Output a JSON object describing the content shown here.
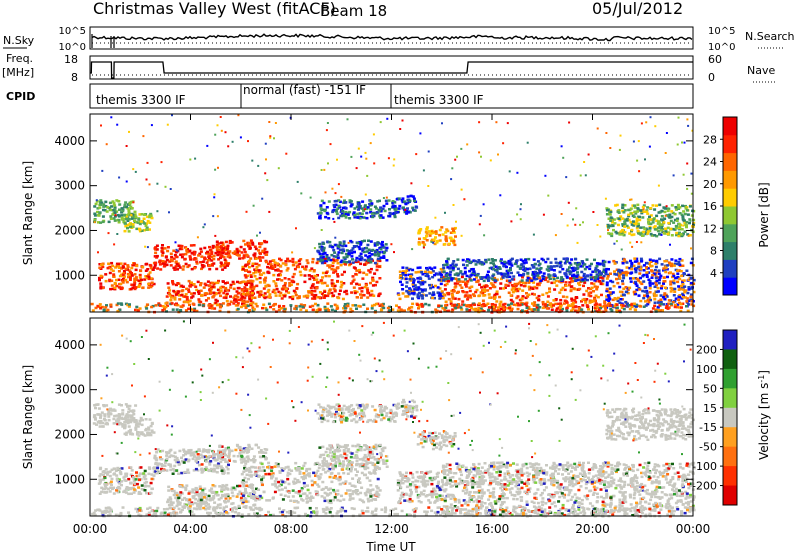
{
  "header": {
    "title": "Christmas Valley West (fitACF)",
    "beam": "Beam 18",
    "date": "05/Jul/2012"
  },
  "chart_data": [
    {
      "type": "line",
      "panel": "noise",
      "left_label": "N.Sky",
      "right_label": "N.Search",
      "left_ticks": [
        "10^5",
        "10^0"
      ],
      "right_ticks": [
        "10^5",
        "10^0"
      ]
    },
    {
      "type": "line",
      "panel": "frequency",
      "left_label": "Freq.",
      "left_units": "[MHz]",
      "left_ticks": [
        18,
        8
      ],
      "right_label": "Nave",
      "right_ticks": [
        60,
        0
      ],
      "freq_mhz": [
        {
          "x": 0.0,
          "y": 10.5
        },
        {
          "x": 0.05,
          "y": 10.5
        },
        {
          "x": 0.06,
          "y": 16
        },
        {
          "x": 0.85,
          "y": 16
        },
        {
          "x": 0.86,
          "y": 8
        },
        {
          "x": 0.95,
          "y": 8
        },
        {
          "x": 0.96,
          "y": 16
        },
        {
          "x": 2.9,
          "y": 16
        },
        {
          "x": 2.95,
          "y": 10.5
        },
        {
          "x": 15.0,
          "y": 10.5
        },
        {
          "x": 15.05,
          "y": 16
        },
        {
          "x": 24,
          "y": 16
        }
      ]
    },
    {
      "type": "table",
      "panel": "cpid",
      "label": "CPID",
      "segments": [
        {
          "start": 0,
          "end": 6,
          "name": "themis 3300 IF"
        },
        {
          "start": 6,
          "end": 12,
          "name": "normal (fast) -151 IF"
        },
        {
          "start": 12,
          "end": 24,
          "name": "themis 3300 IF"
        }
      ]
    },
    {
      "type": "heatmap",
      "panel": "power",
      "ylabel": "Slant Range [km]",
      "yticks": [
        1000,
        2000,
        3000,
        4000
      ],
      "ylim": [
        180,
        4600
      ],
      "colorbar": {
        "label": "Power [dB]",
        "ticks": [
          "4",
          "8",
          "12",
          "16",
          "20",
          "24",
          "28"
        ],
        "range": [
          0,
          32
        ]
      }
    },
    {
      "type": "heatmap",
      "panel": "velocity",
      "ylabel": "Slant Range [km]",
      "yticks": [
        1000,
        2000,
        3000,
        4000
      ],
      "ylim": [
        180,
        4600
      ],
      "colorbar": {
        "label": "Velocity [m s^-1]",
        "ticks": [
          "200",
          "100",
          "50",
          "15",
          "-15",
          "-50",
          "-100",
          "-200"
        ]
      },
      "xlabel": "Time UT",
      "xticks": [
        "00:00",
        "04:00",
        "08:00",
        "12:00",
        "16:00",
        "20:00",
        "00:00"
      ],
      "xlim": [
        0,
        24
      ]
    }
  ],
  "colors": {
    "power_scale": [
      "#0000ff",
      "#2040c0",
      "#2e7f6a",
      "#4fa35a",
      "#8fc832",
      "#ffcc00",
      "#ff9900",
      "#ff6600",
      "#ff2200",
      "#ee0000"
    ],
    "velocity_scale": [
      "#2020c0",
      "#106010",
      "#30a030",
      "#80d040",
      "#c8c8c0",
      "#ffa020",
      "#ff7010",
      "#ff3000",
      "#e00000"
    ],
    "ground_scatter": "#c8c8c0"
  }
}
